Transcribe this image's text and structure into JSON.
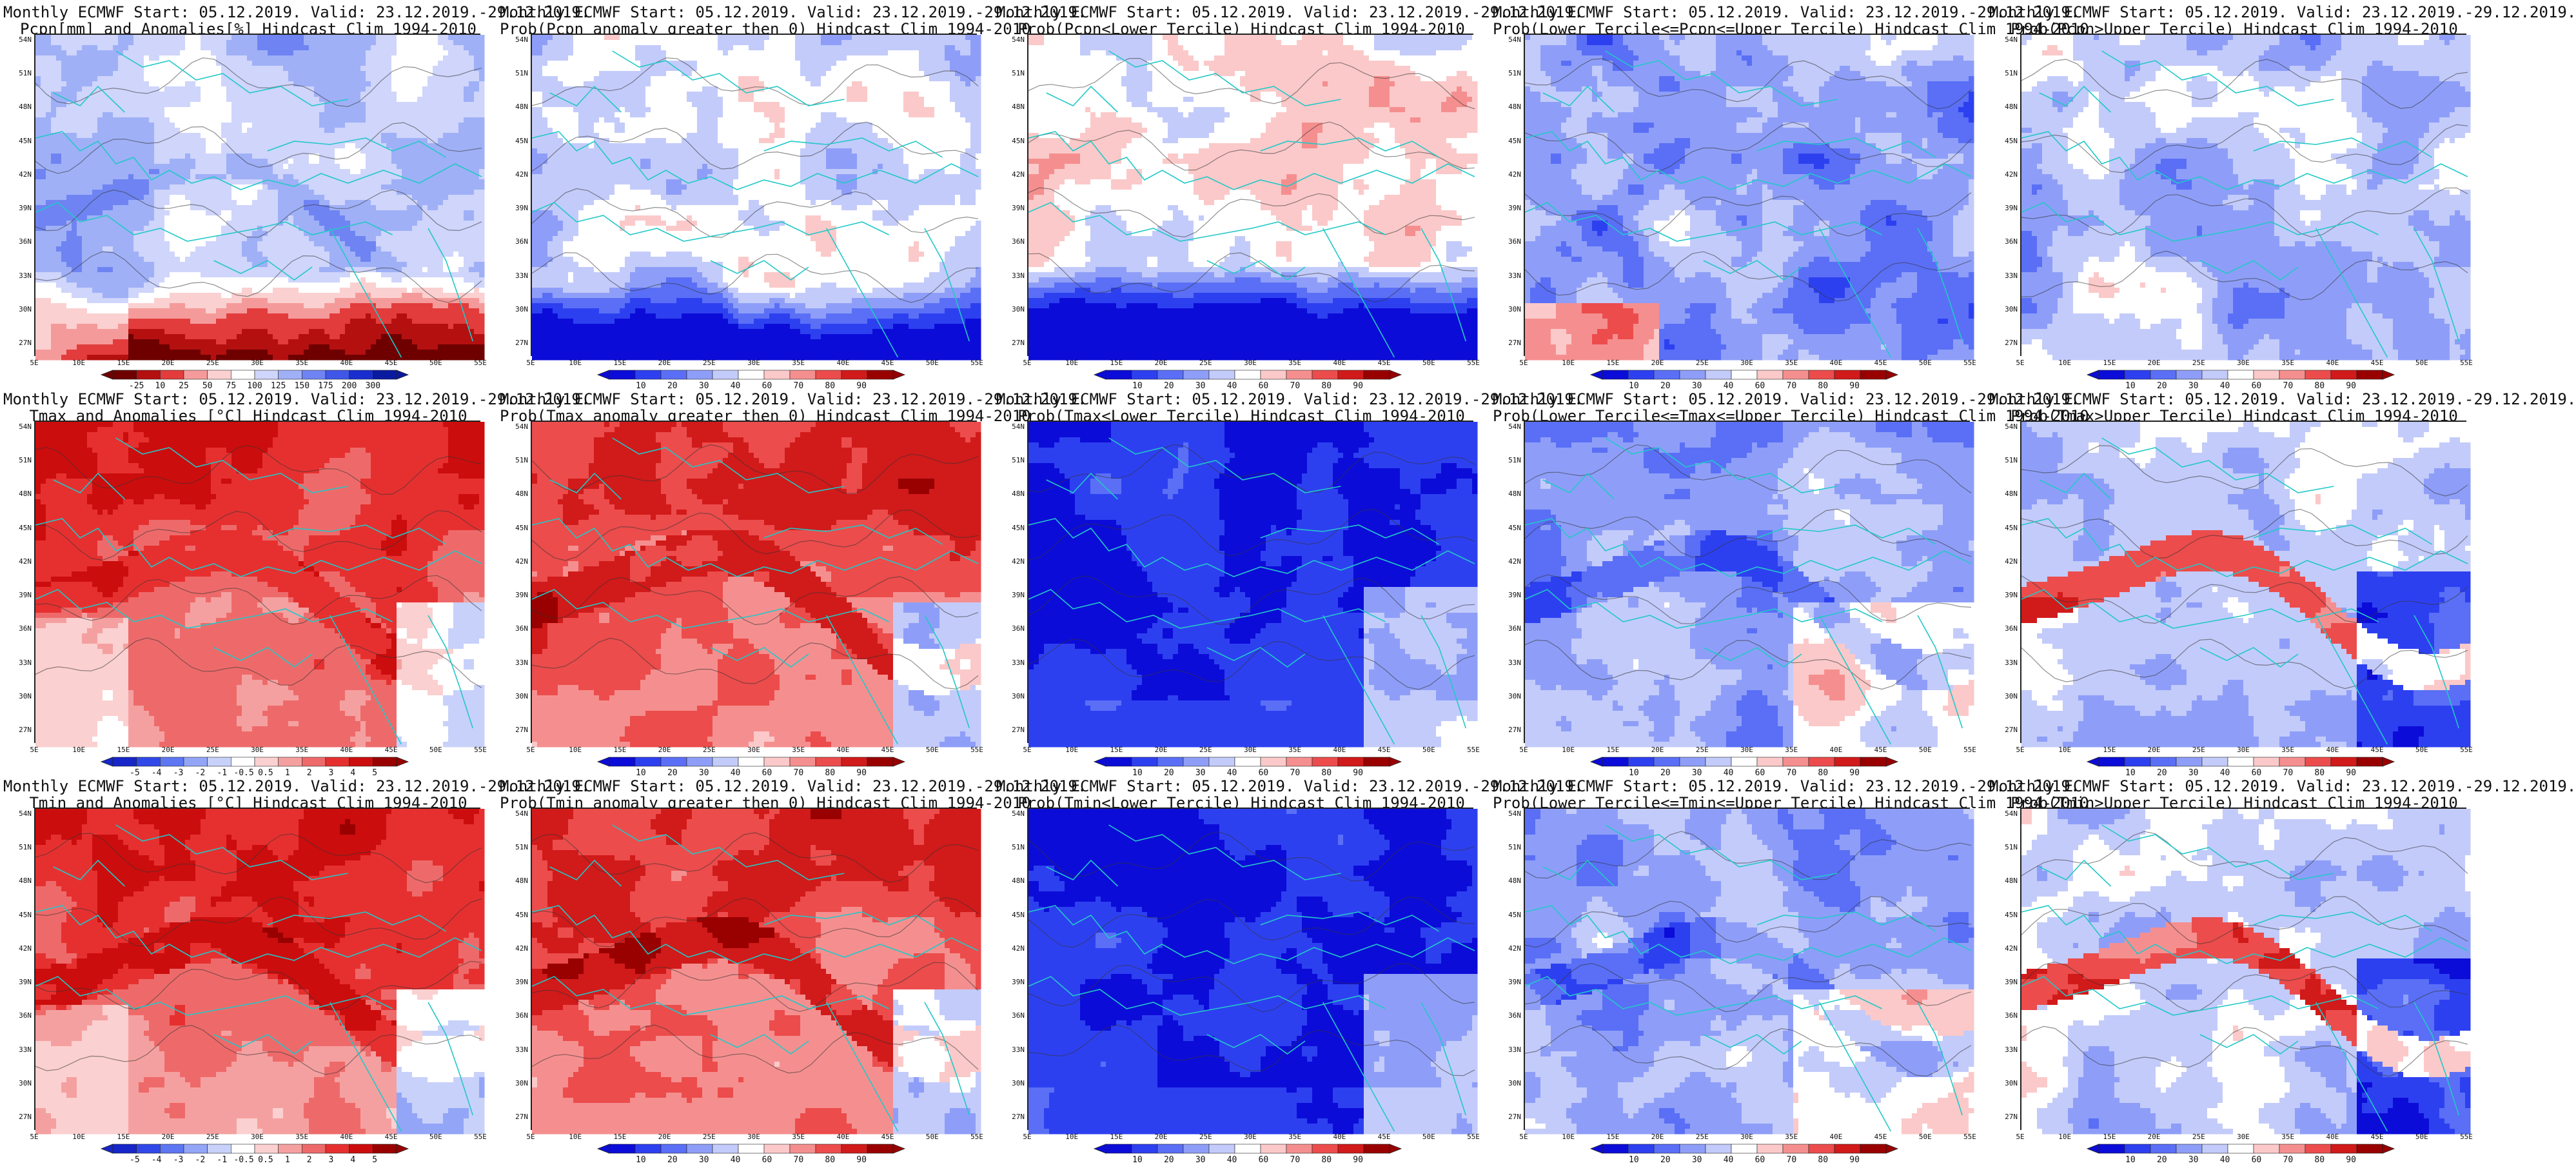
{
  "figure": {
    "panels": [
      {
        "title1": "Monthly ECMWF Start: 05.12.2019. Valid: 23.12.2019.-29.12.2019.",
        "title2": "Pcpn[mm] and Anomalies[%] Hindcast Clim 1994-2010",
        "field": "pcpn_anom",
        "palette": "anom_pcpn",
        "cbar": [
          "-25",
          "10",
          "25",
          "50",
          "75",
          "100",
          "125",
          "150",
          "175",
          "200",
          "300"
        ]
      },
      {
        "title1": "Monthly ECMWF Start: 05.12.2019. Valid: 23.12.2019.-29.12.2019.",
        "title2": "Prob(Pcpn anomaly greater then 0) Hindcast Clim 1994-2010",
        "field": "prob_pos",
        "palette": "prob",
        "cbar": [
          "10",
          "20",
          "30",
          "40",
          "60",
          "70",
          "80",
          "90"
        ]
      },
      {
        "title1": "Monthly ECMWF Start: 05.12.2019. Valid: 23.12.2019.-29.12.2019.",
        "title2": "Prob(Pcpn<Lower Tercile) Hindcast Clim 1994-2010",
        "field": "prob_lower",
        "palette": "prob",
        "cbar": [
          "10",
          "20",
          "30",
          "40",
          "60",
          "70",
          "80",
          "90"
        ]
      },
      {
        "title1": "Monthly ECMWF Start: 05.12.2019. Valid: 23.12.2019.-29.12.2019.",
        "title2": "Prob(Lower Tercile<=Pcpn<=Upper Tercile) Hindcast Clim 1994-2010",
        "field": "prob_mid",
        "palette": "prob",
        "cbar": [
          "10",
          "20",
          "30",
          "40",
          "60",
          "70",
          "80",
          "90"
        ]
      },
      {
        "title1": "Monthly ECMWF Start: 05.12.2019. Valid: 23.12.2019.-29.12.2019.",
        "title2": "Prob(Pcpn>Upper Tercile) Hindcast Clim 1994-2010",
        "field": "prob_upper",
        "palette": "prob",
        "cbar": [
          "10",
          "20",
          "30",
          "40",
          "60",
          "70",
          "80",
          "90"
        ]
      },
      {
        "title1": "Monthly ECMWF Start: 05.12.2019. Valid: 23.12.2019.-29.12.2019.",
        "title2": "Tmax and Anomalies [°C] Hindcast Clim 1994-2010",
        "field": "temp_anom",
        "palette": "anom_temp",
        "cbar": [
          "-5",
          "-4",
          "-3",
          "-2",
          "-1",
          "-0.5",
          "0.5",
          "1",
          "2",
          "3",
          "4",
          "5"
        ]
      },
      {
        "title1": "Monthly ECMWF Start: 05.12.2019. Valid: 23.12.2019.-29.12.2019.",
        "title2": "Prob(Tmax anomaly greater then 0) Hindcast Clim 1994-2010",
        "field": "temp_prob_pos",
        "palette": "prob",
        "cbar": [
          "10",
          "20",
          "30",
          "40",
          "60",
          "70",
          "80",
          "90"
        ]
      },
      {
        "title1": "Monthly ECMWF Start: 05.12.2019. Valid: 23.12.2019.-29.12.2019.",
        "title2": "Prob(Tmax<Lower Tercile) Hindcast Clim 1994-2010",
        "field": "temp_prob_lower",
        "palette": "prob",
        "cbar": [
          "10",
          "20",
          "30",
          "40",
          "60",
          "70",
          "80",
          "90"
        ]
      },
      {
        "title1": "Monthly ECMWF Start: 05.12.2019. Valid: 23.12.2019.-29.12.2019.",
        "title2": "Prob(Lower Tercile<=Tmax<=Upper Tercile) Hindcast Clim 1994-2010",
        "field": "temp_prob_mid",
        "palette": "prob",
        "cbar": [
          "10",
          "20",
          "30",
          "40",
          "60",
          "70",
          "80",
          "90"
        ]
      },
      {
        "title1": "Monthly ECMWF Start: 05.12.2019. Valid: 23.12.2019.-29.12.2019.",
        "title2": "Prob(Tmax>Upper Tercile) Hindcast Clim 1994-2010",
        "field": "temp_prob_upper",
        "palette": "prob",
        "cbar": [
          "10",
          "20",
          "30",
          "40",
          "60",
          "70",
          "80",
          "90"
        ]
      },
      {
        "title1": "Monthly ECMWF Start: 05.12.2019. Valid: 23.12.2019.-29.12.2019.",
        "title2": "Tmin and Anomalies [°C] Hindcast Clim 1994-2010",
        "field": "temp_anom",
        "palette": "anom_temp",
        "cbar": [
          "-5",
          "-4",
          "-3",
          "-2",
          "-1",
          "-0.5",
          "0.5",
          "1",
          "2",
          "3",
          "4",
          "5"
        ]
      },
      {
        "title1": "Monthly ECMWF Start: 05.12.2019. Valid: 23.12.2019.-29.12.2019.",
        "title2": "Prob(Tmin anomaly greater then 0) Hindcast Clim 1994-2010",
        "field": "temp_prob_pos",
        "palette": "prob",
        "cbar": [
          "10",
          "20",
          "30",
          "40",
          "60",
          "70",
          "80",
          "90"
        ]
      },
      {
        "title1": "Monthly ECMWF Start: 05.12.2019. Valid: 23.12.2019.-29.12.2019.",
        "title2": "Prob(Tmin<Lower Tercile) Hindcast Clim 1994-2010",
        "field": "temp_prob_lower",
        "palette": "prob",
        "cbar": [
          "10",
          "20",
          "30",
          "40",
          "60",
          "70",
          "80",
          "90"
        ]
      },
      {
        "title1": "Monthly ECMWF Start: 05.12.2019. Valid: 23.12.2019.-29.12.2019.",
        "title2": "Prob(Lower Tercile<=Tmin<=Upper Tercile) Hindcast Clim 1994-2010",
        "field": "temp_prob_mid",
        "palette": "prob",
        "cbar": [
          "10",
          "20",
          "30",
          "40",
          "60",
          "70",
          "80",
          "90"
        ]
      },
      {
        "title1": "Monthly ECMWF Start: 05.12.2019. Valid: 23.12.2019.-29.12.2019.",
        "title2": "Prob(Tmin>Upper Tercile) Hindcast Clim 1994-2010",
        "field": "temp_prob_upper",
        "palette": "prob",
        "cbar": [
          "10",
          "20",
          "30",
          "40",
          "60",
          "70",
          "80",
          "90"
        ]
      }
    ],
    "lat_labels": [
      "54N",
      "51N",
      "48N",
      "45N",
      "42N",
      "39N",
      "36N",
      "33N",
      "30N",
      "27N"
    ],
    "lon_labels": [
      "5E",
      "10E",
      "15E",
      "20E",
      "25E",
      "30E",
      "35E",
      "40E",
      "45E",
      "50E",
      "55E"
    ],
    "palettes": {
      "prob": [
        "#0c0cd8",
        "#2d40f0",
        "#5a6ff6",
        "#8e9ef8",
        "#c3cbfa",
        "#ffffff",
        "#fbc9c9",
        "#f58f8f",
        "#ec4c4c",
        "#d11a1a",
        "#990000"
      ],
      "anom_pcpn": [
        "#6e0000",
        "#b41010",
        "#e23c3c",
        "#f59a9a",
        "#fbd0d0",
        "#ffffff",
        "#cfd5fb",
        "#9fb0f7",
        "#6f84f2",
        "#3f56e8",
        "#1a2ecf",
        "#0a1aa0"
      ],
      "anom_temp": [
        "#1626c8",
        "#3148e8",
        "#5d76f2",
        "#93a5f7",
        "#c8d1fa",
        "#ffffff",
        "#fbd0d0",
        "#f5a0a0",
        "#ee6a6a",
        "#e63030",
        "#cc0d0d",
        "#990000"
      ]
    },
    "overlay_colors": {
      "borders": "#22c8c8",
      "contours": "#333333"
    }
  }
}
